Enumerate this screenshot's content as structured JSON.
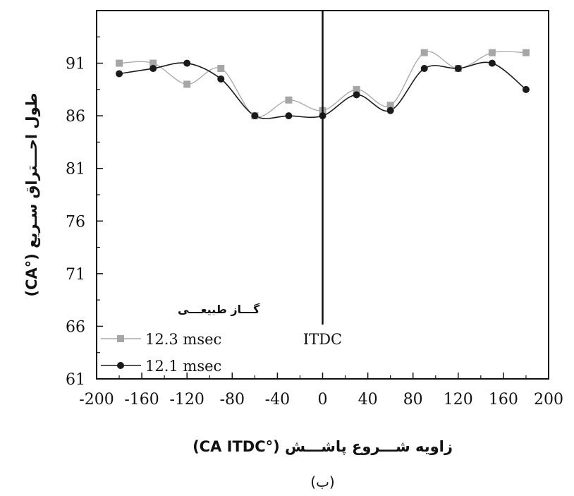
{
  "chart_data": {
    "type": "scatter",
    "xlabel": "زاویه شـــروع پاشـــش (°CA ITDC)",
    "ylabel": "طول احـــتراق سـریع (°CA)",
    "xlim": [
      -200,
      200
    ],
    "ylim": [
      61,
      96
    ],
    "x_ticks": [
      -200,
      -160,
      -120,
      -80,
      -40,
      0,
      40,
      80,
      120,
      160,
      200
    ],
    "y_ticks": [
      61,
      66,
      71,
      76,
      81,
      86,
      91
    ],
    "grid": false,
    "legend_title": "گـــاز طبیعـــی",
    "legend_placement": "bottom-left",
    "annotation": "ITDC",
    "annotation_x": 0,
    "caption": "(ب)",
    "series": [
      {
        "name": "12.3 msec",
        "color": "#a6a6a6",
        "marker": "square",
        "x": [
          -180,
          -150,
          -120,
          -90,
          -60,
          -30,
          0,
          30,
          60,
          90,
          120,
          150,
          180
        ],
        "y": [
          91,
          91,
          89,
          90.5,
          86,
          87.5,
          86.5,
          88.5,
          87,
          92,
          90.5,
          92,
          92
        ]
      },
      {
        "name": "12.1 msec",
        "color": "#1a1a1a",
        "marker": "circle",
        "x": [
          -180,
          -150,
          -120,
          -90,
          -60,
          -30,
          0,
          30,
          60,
          90,
          120,
          150,
          180
        ],
        "y": [
          90,
          90.5,
          91,
          89.5,
          86,
          86,
          86,
          88,
          86.5,
          90.5,
          90.5,
          91,
          88.5
        ]
      }
    ]
  }
}
